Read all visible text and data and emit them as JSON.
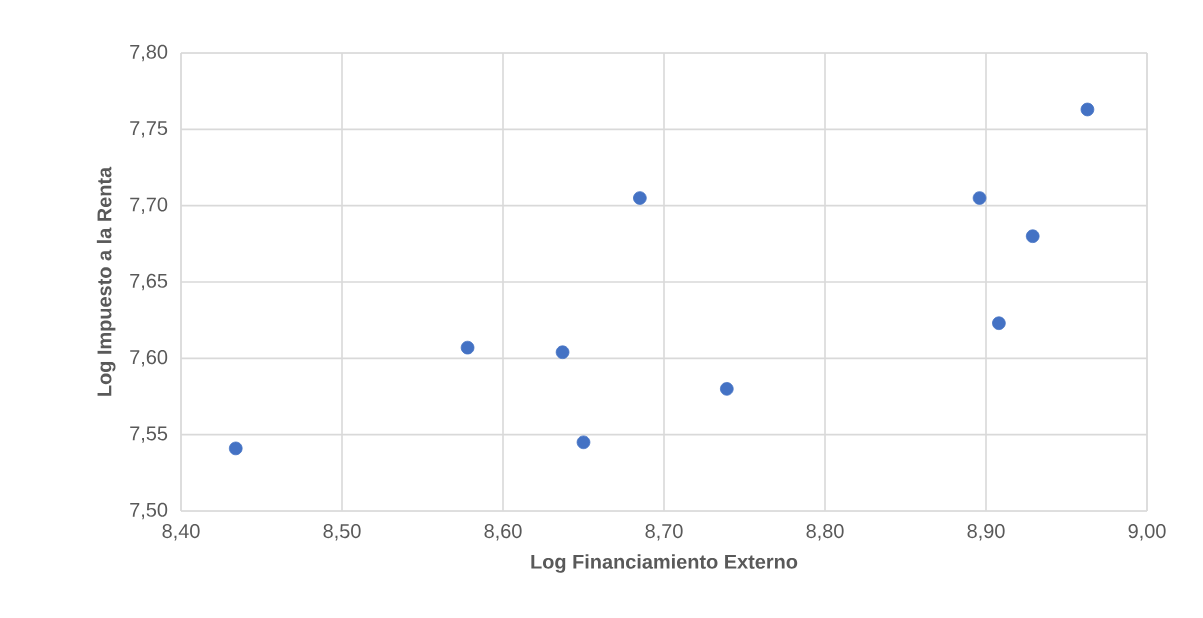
{
  "chart_data": {
    "type": "scatter",
    "xlabel": "Log Financiamiento Externo",
    "ylabel": "Log Impuesto a la Renta",
    "x": [
      8.434,
      8.578,
      8.637,
      8.65,
      8.685,
      8.739,
      8.896,
      8.908,
      8.929,
      8.963
    ],
    "values": [
      7.541,
      7.607,
      7.604,
      7.545,
      7.705,
      7.58,
      7.705,
      7.623,
      7.68,
      7.763
    ],
    "color": "#4472c4",
    "marker": "circle",
    "grid": true,
    "xlim": [
      8.4,
      9.0
    ],
    "xticks": [
      {
        "value": 8.4,
        "label": "8,40"
      },
      {
        "value": 8.5,
        "label": "8,50"
      },
      {
        "value": 8.6,
        "label": "8,60"
      },
      {
        "value": 8.7,
        "label": "8,70"
      },
      {
        "value": 8.8,
        "label": "8,80"
      },
      {
        "value": 8.9,
        "label": "8,90"
      },
      {
        "value": 9.0,
        "label": "9,00"
      }
    ],
    "ylim": [
      7.5,
      7.8
    ],
    "yticks": [
      {
        "value": 7.5,
        "label": "7,50"
      },
      {
        "value": 7.55,
        "label": "7,55"
      },
      {
        "value": 7.6,
        "label": "7,60"
      },
      {
        "value": 7.65,
        "label": "7,65"
      },
      {
        "value": 7.7,
        "label": "7,70"
      },
      {
        "value": 7.75,
        "label": "7,75"
      },
      {
        "value": 7.8,
        "label": "7,80"
      }
    ]
  }
}
